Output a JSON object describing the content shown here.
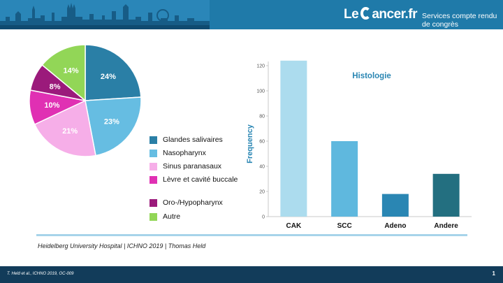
{
  "header": {
    "logo_brand_left": "Le",
    "logo_brand_right": "ancer.fr",
    "logo_tagline": "Services compte rendu de congrès"
  },
  "footnote_top": "Heidelberg University Hospital | ICHNO 2019 | Thomas Held",
  "footer": {
    "citation": "T. Held et al., ICHNO 2019, OC-009",
    "page_number": "1"
  },
  "colors": {
    "header_bg": "#1f7aa9",
    "footer_bg": "#123c5a",
    "divider": "#a7d4ea"
  },
  "chart_data": [
    {
      "type": "pie",
      "title": "",
      "slices": [
        {
          "label": "Glandes salivaires",
          "value": 24,
          "display": "24%",
          "color": "#2a7fa6",
          "text_color": "#ffffff"
        },
        {
          "label": "Nasopharynx",
          "value": 23,
          "display": "23%",
          "color": "#66bde2",
          "text_color": "#ffffff"
        },
        {
          "label": "Sinus paranasaux",
          "value": 21,
          "display": "21%",
          "color": "#f6aee8",
          "text_color": "#ffffff"
        },
        {
          "label": "Lèvre et cavité buccale",
          "value": 10,
          "display": "10%",
          "color": "#e030b3",
          "text_color": "#ffffff"
        },
        {
          "label": "Oro-/Hypopharynx",
          "value": 8,
          "display": "8%",
          "color": "#9b1a7b",
          "text_color": "#ffffff"
        },
        {
          "label": "Autre",
          "value": 14,
          "display": "14%",
          "color": "#92d657",
          "text_color": "#ffffff"
        }
      ],
      "legend_placement": "bottom-right"
    },
    {
      "type": "bar",
      "title": "Histologie",
      "xlabel": "",
      "ylabel": "Frequency",
      "categories": [
        "CAK",
        "SCC",
        "Adeno",
        "Andere"
      ],
      "values": [
        124,
        60,
        18,
        34
      ],
      "colors": [
        "#acdcee",
        "#5fb8de",
        "#2a86b3",
        "#236f80"
      ],
      "ylim": [
        0,
        120
      ],
      "yticks": [
        "0",
        "20",
        "40",
        "60",
        "80",
        "100",
        "120"
      ],
      "grid": false
    }
  ]
}
